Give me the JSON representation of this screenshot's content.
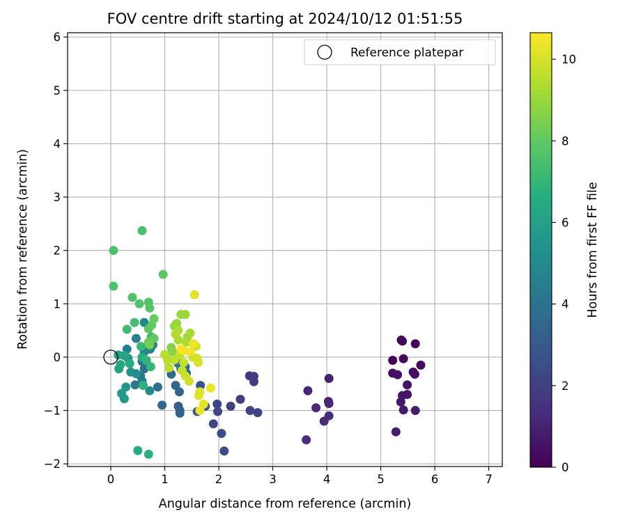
{
  "chart_data": {
    "type": "scatter",
    "title": "FOV centre drift starting at 2024/10/12 01:51:55",
    "xlabel": "Angular distance from reference (arcmin)",
    "ylabel": "Rotation from reference (arcmin)",
    "xlim": [
      -0.8,
      7.25
    ],
    "ylim": [
      -2.05,
      6.08
    ],
    "x_ticks": [
      0,
      1,
      2,
      3,
      4,
      5,
      6,
      7
    ],
    "y_ticks": [
      -2,
      -1,
      0,
      1,
      2,
      3,
      4,
      5,
      6
    ],
    "x_tick_labels": [
      "0",
      "1",
      "2",
      "3",
      "4",
      "5",
      "6",
      "7"
    ],
    "y_tick_labels": [
      "−2",
      "−1",
      "0",
      "1",
      "2",
      "3",
      "4",
      "5",
      "6"
    ],
    "grid": true,
    "legend": {
      "position": "top-right",
      "label": "Reference platepar"
    },
    "reference_point": {
      "x": 0,
      "y": 0
    },
    "colorbar": {
      "label": "Hours from first FF file",
      "range": [
        0,
        10.65
      ],
      "ticks": [
        0,
        2,
        4,
        6,
        8,
        10
      ],
      "tick_labels": [
        "0",
        "2",
        "4",
        "6",
        "8",
        "10"
      ],
      "colormap": "viridis"
    },
    "points": [
      [
        5.38,
        0.32,
        0.1
      ],
      [
        5.4,
        0.3,
        0.12
      ],
      [
        5.64,
        0.25,
        0.2
      ],
      [
        5.22,
        -0.06,
        0.15
      ],
      [
        5.42,
        -0.03,
        0.25
      ],
      [
        5.74,
        -0.15,
        0.3
      ],
      [
        5.6,
        -0.28,
        0.35
      ],
      [
        5.63,
        -0.32,
        0.4
      ],
      [
        5.22,
        -0.3,
        0.45
      ],
      [
        5.31,
        -0.33,
        0.5
      ],
      [
        5.49,
        -0.52,
        0.55
      ],
      [
        5.4,
        -0.72,
        0.6
      ],
      [
        5.49,
        -0.7,
        0.65
      ],
      [
        5.37,
        -0.84,
        0.7
      ],
      [
        5.42,
        -0.99,
        0.75
      ],
      [
        5.64,
        -1.0,
        0.8
      ],
      [
        5.28,
        -1.4,
        0.85
      ],
      [
        4.04,
        -0.4,
        1.0
      ],
      [
        3.65,
        -0.63,
        1.1
      ],
      [
        4.03,
        -0.83,
        1.15
      ],
      [
        4.04,
        -0.87,
        1.2
      ],
      [
        3.8,
        -0.95,
        1.25
      ],
      [
        4.04,
        -1.1,
        1.3
      ],
      [
        3.95,
        -1.2,
        1.35
      ],
      [
        3.62,
        -1.55,
        1.4
      ],
      [
        2.57,
        -0.35,
        1.8
      ],
      [
        2.65,
        -0.36,
        1.85
      ],
      [
        2.65,
        -0.46,
        1.9
      ],
      [
        2.4,
        -0.79,
        1.95
      ],
      [
        2.22,
        -0.92,
        2.0
      ],
      [
        2.58,
        -1.0,
        2.05
      ],
      [
        2.72,
        -1.04,
        2.1
      ],
      [
        1.97,
        -0.88,
        2.2
      ],
      [
        1.98,
        -1.02,
        2.25
      ],
      [
        1.9,
        -1.25,
        2.3
      ],
      [
        2.05,
        -1.43,
        2.4
      ],
      [
        2.1,
        -1.76,
        2.45
      ],
      [
        1.66,
        -0.53,
        2.7
      ],
      [
        1.6,
        -1.02,
        2.8
      ],
      [
        1.75,
        -0.92,
        2.75
      ],
      [
        1.25,
        -0.92,
        3.2
      ],
      [
        1.28,
        -1.0,
        3.3
      ],
      [
        1.28,
        -1.05,
        3.35
      ],
      [
        1.2,
        -0.53,
        3.45
      ],
      [
        1.27,
        -0.65,
        3.5
      ],
      [
        0.95,
        -0.9,
        3.6
      ],
      [
        1.12,
        -0.32,
        3.7
      ],
      [
        0.87,
        -0.56,
        3.8
      ],
      [
        1.3,
        -0.22,
        3.85
      ],
      [
        1.4,
        -0.3,
        3.9
      ],
      [
        1.38,
        -0.18,
        3.95
      ],
      [
        1.25,
        -0.12,
        4.0
      ],
      [
        0.58,
        -0.08,
        4.1
      ],
      [
        0.62,
        -0.22,
        4.15
      ],
      [
        0.55,
        -0.35,
        4.25
      ],
      [
        0.58,
        -0.45,
        4.3
      ],
      [
        0.45,
        -0.52,
        4.35
      ],
      [
        0.3,
        0.15,
        4.45
      ],
      [
        0.47,
        0.35,
        4.6
      ],
      [
        0.62,
        0.1,
        4.55
      ],
      [
        0.7,
        0.2,
        4.7
      ],
      [
        0.73,
        0.15,
        4.75
      ],
      [
        0.78,
        0.23,
        4.8
      ],
      [
        0.62,
        0.65,
        5.0
      ],
      [
        0.72,
        -0.63,
        5.1
      ],
      [
        0.47,
        -0.31,
        5.2
      ],
      [
        0.37,
        -0.28,
        5.4
      ],
      [
        0.32,
        -0.02,
        5.5
      ],
      [
        0.28,
        -0.56,
        5.55
      ],
      [
        0.25,
        -0.78,
        5.7
      ],
      [
        0.2,
        -0.68,
        5.8
      ],
      [
        0.14,
        0.04,
        5.9
      ],
      [
        0.15,
        -0.22,
        6.1
      ],
      [
        0.25,
        0.03,
        6.25
      ],
      [
        0.18,
        -0.14,
        6.35
      ],
      [
        0.5,
        -1.75,
        6.5
      ],
      [
        0.35,
        -0.12,
        6.5
      ],
      [
        0.58,
        0.0,
        6.6
      ],
      [
        0.7,
        -1.82,
        6.7
      ],
      [
        0.6,
        -0.53,
        6.8
      ],
      [
        0.66,
        -0.06,
        6.9
      ],
      [
        0.74,
        -0.18,
        7.0
      ],
      [
        0.56,
        0.2,
        7.1
      ],
      [
        0.75,
        0.38,
        7.2
      ],
      [
        0.3,
        0.52,
        7.3
      ],
      [
        0.44,
        0.65,
        7.4
      ],
      [
        0.58,
        2.37,
        7.5
      ],
      [
        0.05,
        2.0,
        7.55
      ],
      [
        0.05,
        1.33,
        7.6
      ],
      [
        0.4,
        1.12,
        7.65
      ],
      [
        0.53,
        1.0,
        7.7
      ],
      [
        0.7,
        1.03,
        7.75
      ],
      [
        0.72,
        0.92,
        7.8
      ],
      [
        0.97,
        1.55,
        7.85
      ],
      [
        0.7,
        0.53,
        7.9
      ],
      [
        0.8,
        0.35,
        8.0
      ],
      [
        0.76,
        0.6,
        8.05
      ],
      [
        0.8,
        0.72,
        8.1
      ],
      [
        0.7,
        0.28,
        8.2
      ],
      [
        0.72,
        0.23,
        8.3
      ],
      [
        1.12,
        0.18,
        8.6
      ],
      [
        1.14,
        0.1,
        8.7
      ],
      [
        1.18,
        0.58,
        8.85
      ],
      [
        1.22,
        0.63,
        8.9
      ],
      [
        1.3,
        0.8,
        9.0
      ],
      [
        1.38,
        0.8,
        9.05
      ],
      [
        1.42,
        0.38,
        9.1
      ],
      [
        1.47,
        0.45,
        9.2
      ],
      [
        1.4,
        0.28,
        9.25
      ],
      [
        1.25,
        0.32,
        9.3
      ],
      [
        1.25,
        0.5,
        9.35
      ],
      [
        1.2,
        0.43,
        9.4
      ],
      [
        1.0,
        0.05,
        9.45
      ],
      [
        1.05,
        -0.05,
        9.5
      ],
      [
        1.08,
        -0.2,
        9.55
      ],
      [
        1.18,
        -0.05,
        9.6
      ],
      [
        1.28,
        0.05,
        9.65
      ],
      [
        1.35,
        -0.1,
        9.7
      ],
      [
        1.32,
        -0.25,
        9.75
      ],
      [
        1.38,
        -0.35,
        9.8
      ],
      [
        1.45,
        -0.45,
        9.85
      ],
      [
        1.52,
        0.0,
        9.9
      ],
      [
        1.58,
        0.2,
        9.95
      ],
      [
        1.6,
        -0.02,
        10.0
      ],
      [
        1.62,
        -0.1,
        10.05
      ],
      [
        1.65,
        -0.65,
        10.1
      ],
      [
        1.63,
        -0.72,
        10.15
      ],
      [
        1.55,
        1.17,
        10.2
      ],
      [
        1.72,
        -0.88,
        10.25
      ],
      [
        1.65,
        -1.0,
        10.3
      ],
      [
        1.85,
        -0.58,
        10.35
      ],
      [
        1.53,
        0.25,
        10.4
      ],
      [
        1.47,
        0.1,
        10.45
      ],
      [
        1.35,
        0.12,
        10.5
      ],
      [
        1.3,
        0.15,
        10.55
      ]
    ]
  }
}
